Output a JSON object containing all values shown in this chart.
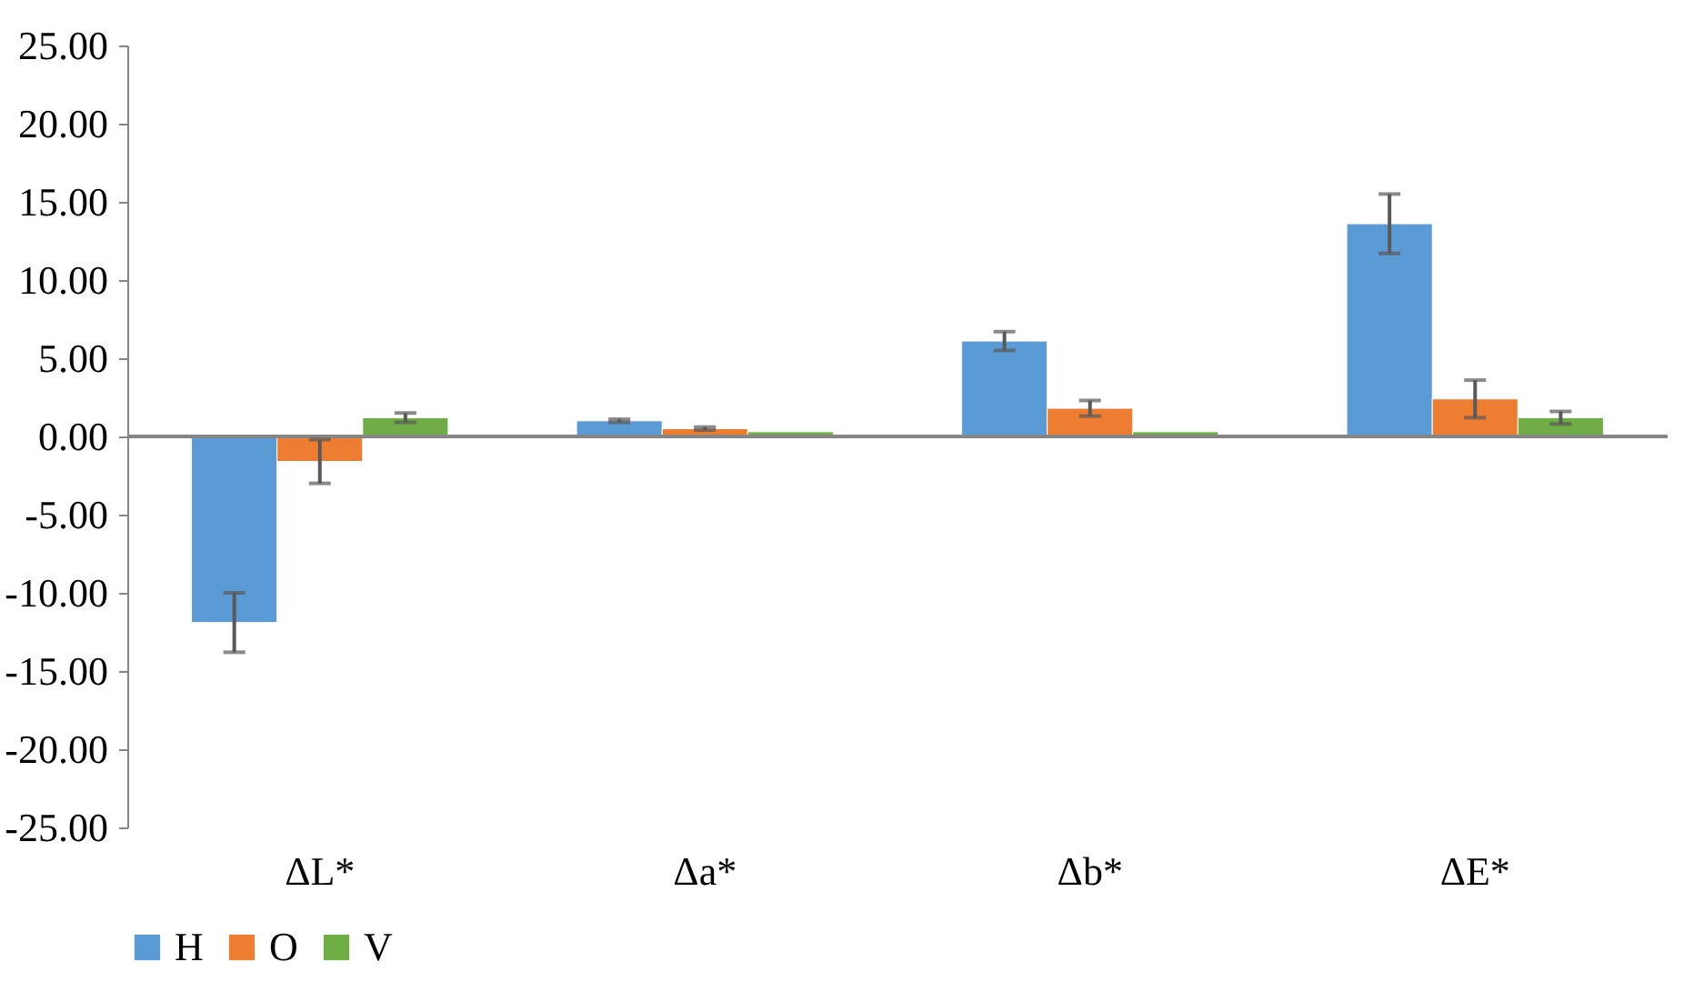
{
  "chart_data": {
    "type": "bar",
    "categories": [
      "ΔL*",
      "Δa*",
      "Δb*",
      "ΔE*"
    ],
    "series": [
      {
        "name": "H",
        "color": "#5b9bd5",
        "values": [
          -11.9,
          1.0,
          6.1,
          13.6
        ],
        "errors": [
          1.9,
          0.1,
          0.6,
          1.9
        ]
      },
      {
        "name": "O",
        "color": "#ed7d31",
        "values": [
          -1.6,
          0.5,
          1.8,
          2.4
        ],
        "errors": [
          1.4,
          0.1,
          0.5,
          1.2
        ]
      },
      {
        "name": "V",
        "color": "#70ad47",
        "values": [
          1.2,
          0.3,
          0.3,
          1.2
        ],
        "errors": [
          0.3,
          null,
          null,
          0.4
        ]
      }
    ],
    "ylim": [
      -25,
      25
    ],
    "yticks": [
      {
        "value": -25,
        "label": "-25.00"
      },
      {
        "value": -20,
        "label": "-20.00"
      },
      {
        "value": -15,
        "label": "-15.00"
      },
      {
        "value": -10,
        "label": "-10.00"
      },
      {
        "value": -5,
        "label": "-5.00"
      },
      {
        "value": 0,
        "label": "0.00"
      },
      {
        "value": 5,
        "label": "5.00"
      },
      {
        "value": 10,
        "label": "10.00"
      },
      {
        "value": 15,
        "label": "15.00"
      },
      {
        "value": 20,
        "label": "20.00"
      },
      {
        "value": 25,
        "label": "25.00"
      }
    ],
    "ref_lines": [
      {
        "axis": "y",
        "value": 0,
        "color": "#868686"
      }
    ],
    "grid": false,
    "legend": "bottom"
  }
}
